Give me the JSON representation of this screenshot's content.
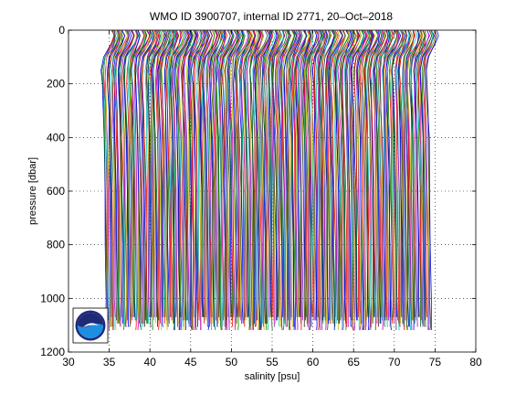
{
  "chart_data": {
    "type": "line",
    "title": "WMO ID 3900707, internal ID 2771, 20–Oct–2018",
    "xlabel": "salinity [psu]",
    "ylabel": "pressure [dbar]",
    "xlim": [
      30,
      80
    ],
    "ylim": [
      0,
      1200
    ],
    "y_reversed": true,
    "grid": true,
    "grid_style": "dotted",
    "x_ticks": [
      30,
      35,
      40,
      45,
      50,
      55,
      60,
      65,
      70,
      75,
      80
    ],
    "y_ticks": [
      0,
      200,
      400,
      600,
      800,
      1000,
      1200
    ],
    "profile_description": "Waterfall of salinity profiles, each profile offset 0.1 psu in salinity; profiles start near 34.5 psu and end near 75 psu",
    "profile_count": 400,
    "offset_start": 34.6,
    "offset_step": 0.1,
    "profile_shape": {
      "pressure": [
        0,
        20,
        50,
        100,
        150,
        200,
        300,
        400,
        600,
        800,
        1000,
        1100
      ],
      "salinity_anomaly": [
        0.55,
        0.8,
        0.5,
        -0.25,
        -0.45,
        -0.4,
        -0.3,
        -0.22,
        -0.12,
        -0.06,
        -0.02,
        0.0
      ]
    },
    "colors": [
      "#0000ff",
      "#008000",
      "#ff0000",
      "#00bfbf",
      "#bf00bf",
      "#bfbf00",
      "#404040"
    ]
  },
  "logo": {
    "text": "NOAA",
    "colors": {
      "navy": "#1e2a78",
      "blue": "#1d8ee0",
      "light": "#ffffff"
    }
  }
}
